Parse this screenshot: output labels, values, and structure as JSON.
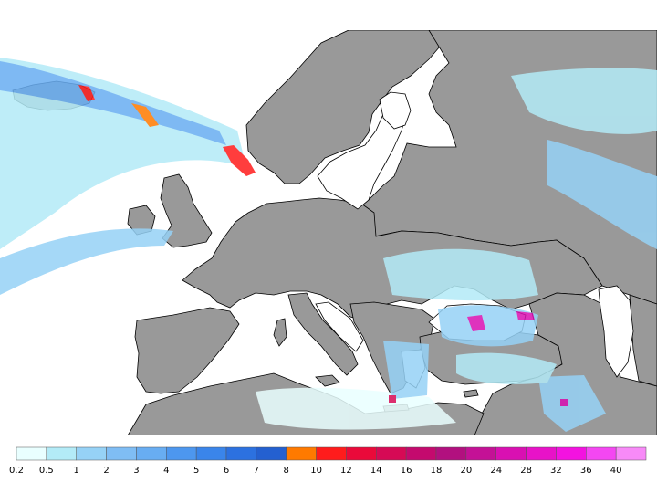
{
  "map": {
    "region": "Europe",
    "colors": {
      "sea": "#ffffff",
      "land": "#999999",
      "border": "#000000"
    }
  },
  "legend": {
    "bins": [
      {
        "label": "0.2",
        "color": "#e9ffff"
      },
      {
        "label": "0.5",
        "color": "#b3ebf7"
      },
      {
        "label": "1",
        "color": "#96d2f6"
      },
      {
        "label": "2",
        "color": "#7fbdf4"
      },
      {
        "label": "3",
        "color": "#68adf2"
      },
      {
        "label": "4",
        "color": "#4d97ef"
      },
      {
        "label": "5",
        "color": "#3a85ea"
      },
      {
        "label": "6",
        "color": "#2c71e0"
      },
      {
        "label": "7",
        "color": "#2460d0"
      },
      {
        "label": "8",
        "color": "#ff7a00"
      },
      {
        "label": "10",
        "color": "#ff1c1c"
      },
      {
        "label": "12",
        "color": "#ea0a3a"
      },
      {
        "label": "14",
        "color": "#d60a55"
      },
      {
        "label": "16",
        "color": "#c40a6e"
      },
      {
        "label": "18",
        "color": "#b2107f"
      },
      {
        "label": "20",
        "color": "#c41196"
      },
      {
        "label": "24",
        "color": "#d910b2"
      },
      {
        "label": "28",
        "color": "#e812c8"
      },
      {
        "label": "32",
        "color": "#f312e0"
      },
      {
        "label": "36",
        "color": "#f447f2"
      },
      {
        "label": "40",
        "color": "#f88af8"
      }
    ]
  }
}
